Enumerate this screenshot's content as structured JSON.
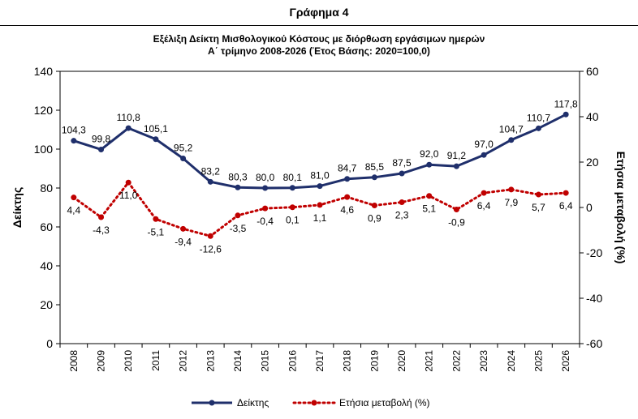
{
  "page": {
    "heading": "Γράφημα 4"
  },
  "chart_data": {
    "type": "line",
    "title_line1": "Εξέλιξη Δείκτη Μισθολογικού Κόστους με διόρθωση εργάσιμων ημερών",
    "title_line2": "Α΄ τρίμηνο 2008-2026 (Έτος Βάσης: 2020=100,0)",
    "ylabel_left": "Δείκτης",
    "ylabel_right": "Ετήσια μεταβολή (%)",
    "ylim_left": [
      0,
      140
    ],
    "ylim_right": [
      -60,
      60
    ],
    "yticks_left": [
      "0",
      "20",
      "40",
      "60",
      "80",
      "100",
      "120",
      "140"
    ],
    "yticks_right": [
      "-60",
      "-40",
      "-20",
      "0",
      "20",
      "40",
      "60"
    ],
    "categories": [
      "2008",
      "2009",
      "2010",
      "2011",
      "2012",
      "2013",
      "2014",
      "2015",
      "2016",
      "2017",
      "2018",
      "2019",
      "2020",
      "2021",
      "2022",
      "2023",
      "2024",
      "2025",
      "2026"
    ],
    "grid": false,
    "legend_position": "bottom",
    "series": [
      {
        "name": "Δείκτης",
        "axis": "left",
        "style": "solid",
        "color": "#1f2f6b",
        "values": [
          104.3,
          99.8,
          110.8,
          105.1,
          95.2,
          83.2,
          80.3,
          80.0,
          80.1,
          81.0,
          84.7,
          85.5,
          87.5,
          92.0,
          91.2,
          97.0,
          104.7,
          110.7,
          117.8
        ],
        "labels": [
          "104,3",
          "99,8",
          "110,8",
          "105,1",
          "95,2",
          "83,2",
          "80,3",
          "80,0",
          "80,1",
          "81,0",
          "84,7",
          "85,5",
          "87,5",
          "92,0",
          "91,2",
          "97,0",
          "104,7",
          "110,7",
          "117,8"
        ]
      },
      {
        "name": "Ετήσια μεταβολή (%)",
        "axis": "right",
        "style": "dotted",
        "color": "#c00000",
        "values": [
          4.4,
          -4.3,
          11.0,
          -5.1,
          -9.4,
          -12.6,
          -3.5,
          -0.4,
          0.1,
          1.1,
          4.6,
          0.9,
          2.3,
          5.1,
          -0.9,
          6.4,
          7.9,
          5.7,
          6.4
        ],
        "labels": [
          "4,4",
          "-4,3",
          "11,0",
          "-5,1",
          "-9,4",
          "-12,6",
          "-3,5",
          "-0,4",
          "0,1",
          "1,1",
          "4,6",
          "0,9",
          "2,3",
          "5,1",
          "-0,9",
          "6,4",
          "7,9",
          "5,7",
          "6,4"
        ]
      }
    ]
  }
}
